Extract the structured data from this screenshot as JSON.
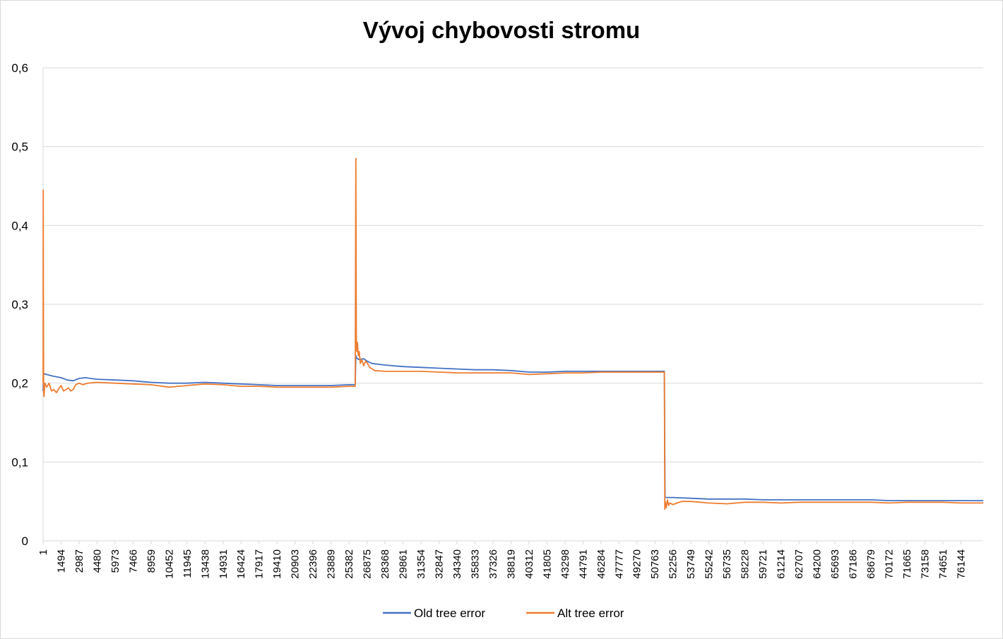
{
  "chart_data": {
    "type": "line",
    "title": "Vývoj chybovosti stromu",
    "xlabel": "",
    "ylabel": "",
    "ylim": [
      0,
      0.6
    ],
    "xlim": [
      1,
      78000
    ],
    "y_ticks": [
      "0",
      "0,1",
      "0,2",
      "0,3",
      "0,4",
      "0,5",
      "0,6"
    ],
    "y_tick_values": [
      0,
      0.1,
      0.2,
      0.3,
      0.4,
      0.5,
      0.6
    ],
    "x_tick_labels": [
      "1",
      "1494",
      "2987",
      "4480",
      "5973",
      "7466",
      "8959",
      "10452",
      "11945",
      "13438",
      "14931",
      "16424",
      "17917",
      "19410",
      "20903",
      "22396",
      "23889",
      "25382",
      "26875",
      "28368",
      "29861",
      "31354",
      "32847",
      "34340",
      "35833",
      "37326",
      "38819",
      "40312",
      "41805",
      "43298",
      "44791",
      "46284",
      "47777",
      "49270",
      "50763",
      "52256",
      "53749",
      "55242",
      "56735",
      "58228",
      "59721",
      "61214",
      "62707",
      "64200",
      "65693",
      "67186",
      "68679",
      "70172",
      "71665",
      "73158",
      "74651",
      "76144"
    ],
    "grid": true,
    "legend_position": "bottom",
    "series": [
      {
        "name": "Old tree error",
        "color": "#4472C4",
        "x": [
          1,
          30,
          80,
          300,
          800,
          1494,
          2000,
          2500,
          2987,
          3500,
          4480,
          5973,
          7466,
          8959,
          10452,
          11945,
          13438,
          14931,
          16424,
          17917,
          19410,
          20903,
          22396,
          23889,
          25382,
          25900,
          25950,
          26000,
          26200,
          26600,
          26875,
          27300,
          28368,
          29861,
          31354,
          32847,
          34340,
          35833,
          37326,
          38819,
          40312,
          41805,
          43298,
          44791,
          46284,
          47777,
          49270,
          50763,
          51500,
          51550,
          51600,
          52256,
          53749,
          55242,
          56735,
          58228,
          59721,
          61214,
          62707,
          64200,
          65693,
          67186,
          68679,
          70172,
          71665,
          73158,
          74651,
          76144,
          78000
        ],
        "y": [
          0.19,
          0.21,
          0.212,
          0.211,
          0.209,
          0.207,
          0.204,
          0.203,
          0.206,
          0.207,
          0.205,
          0.204,
          0.203,
          0.201,
          0.2,
          0.2,
          0.201,
          0.2,
          0.199,
          0.198,
          0.197,
          0.197,
          0.197,
          0.197,
          0.198,
          0.198,
          0.235,
          0.232,
          0.23,
          0.231,
          0.228,
          0.225,
          0.223,
          0.221,
          0.22,
          0.219,
          0.218,
          0.217,
          0.217,
          0.216,
          0.214,
          0.214,
          0.215,
          0.215,
          0.215,
          0.215,
          0.215,
          0.215,
          0.215,
          0.215,
          0.055,
          0.055,
          0.054,
          0.053,
          0.053,
          0.053,
          0.052,
          0.052,
          0.052,
          0.052,
          0.052,
          0.052,
          0.052,
          0.051,
          0.051,
          0.051,
          0.051,
          0.051,
          0.051
        ]
      },
      {
        "name": "Alt tree error",
        "color": "#ED7D31",
        "x": [
          1,
          15,
          40,
          80,
          150,
          300,
          500,
          700,
          900,
          1100,
          1300,
          1494,
          1700,
          1900,
          2100,
          2300,
          2500,
          2700,
          2987,
          3300,
          3700,
          4480,
          5973,
          7466,
          8959,
          10452,
          11945,
          13438,
          14931,
          16424,
          17917,
          19410,
          20903,
          22396,
          23889,
          25382,
          25900,
          25950,
          25990,
          26030,
          26080,
          26150,
          26230,
          26320,
          26450,
          26600,
          26750,
          26875,
          27100,
          27500,
          28368,
          29861,
          31354,
          32847,
          34340,
          35833,
          37326,
          38819,
          40312,
          41805,
          43298,
          44791,
          46284,
          47777,
          49270,
          50763,
          51500,
          51550,
          51580,
          51620,
          51700,
          51800,
          51900,
          52000,
          52256,
          52600,
          53000,
          53749,
          55242,
          56735,
          58228,
          59721,
          61214,
          62707,
          64200,
          65693,
          67186,
          68679,
          70172,
          71665,
          73158,
          74651,
          76144,
          78000
        ],
        "y": [
          0.2,
          0.445,
          0.19,
          0.183,
          0.2,
          0.195,
          0.2,
          0.19,
          0.192,
          0.188,
          0.193,
          0.197,
          0.19,
          0.192,
          0.194,
          0.19,
          0.192,
          0.198,
          0.2,
          0.198,
          0.2,
          0.201,
          0.2,
          0.199,
          0.198,
          0.195,
          0.197,
          0.199,
          0.198,
          0.196,
          0.196,
          0.195,
          0.195,
          0.195,
          0.195,
          0.196,
          0.196,
          0.485,
          0.25,
          0.24,
          0.252,
          0.235,
          0.24,
          0.225,
          0.23,
          0.222,
          0.228,
          0.226,
          0.22,
          0.216,
          0.215,
          0.215,
          0.215,
          0.214,
          0.213,
          0.213,
          0.213,
          0.213,
          0.211,
          0.212,
          0.213,
          0.213,
          0.214,
          0.214,
          0.214,
          0.214,
          0.214,
          0.214,
          0.04,
          0.05,
          0.042,
          0.052,
          0.045,
          0.048,
          0.046,
          0.048,
          0.05,
          0.05,
          0.048,
          0.047,
          0.049,
          0.049,
          0.048,
          0.049,
          0.049,
          0.049,
          0.049,
          0.049,
          0.048,
          0.049,
          0.049,
          0.049,
          0.048,
          0.048
        ]
      }
    ]
  }
}
